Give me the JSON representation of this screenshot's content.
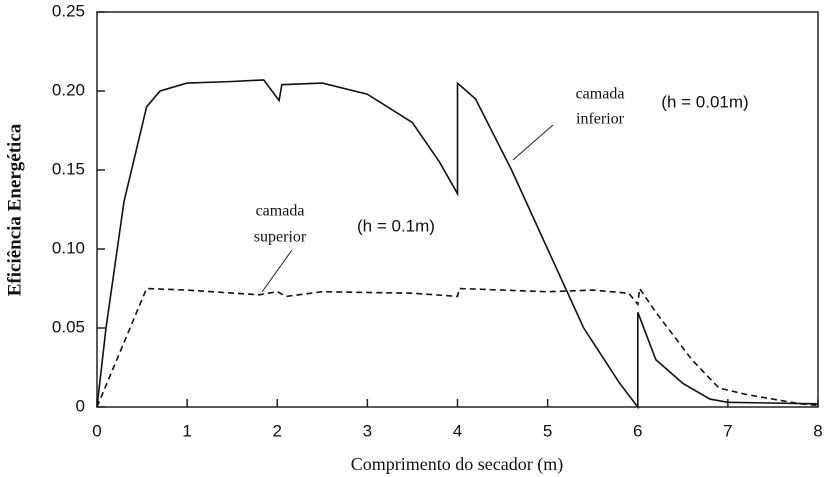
{
  "chart_data": {
    "type": "line",
    "x_label": "Comprimento do secador (m)",
    "y_label": "Eficiência Energética",
    "annotations": [
      {
        "lines": [
          "camada",
          "inferior"
        ],
        "text": "(h = 0.01m)"
      },
      {
        "lines": [
          "camada",
          "superior"
        ],
        "text": "(h = 0.1m)"
      }
    ],
    "xlim": [
      0,
      8
    ],
    "xticks": [
      0,
      1,
      2,
      3,
      4,
      5,
      6,
      7,
      8
    ],
    "ylim": [
      0,
      0.25
    ],
    "yticks": [
      0,
      0.05,
      {
        "value": 0.1,
        "label": "0.10"
      },
      0.15,
      {
        "value": 0.2,
        "label": "0.20"
      },
      0.25
    ],
    "series": [
      {
        "color": "#111111",
        "dash": false,
        "x": [
          0,
          0.1,
          0.3,
          0.55,
          0.7,
          1.0,
          1.5,
          1.85,
          2.02,
          2.05,
          2.5,
          3.0,
          3.5,
          3.8,
          4.0,
          4.0,
          4.2,
          4.6,
          5.0,
          5.4,
          5.8,
          6.0,
          6.0,
          6.2,
          6.5,
          6.8,
          7.0,
          8.0
        ],
        "values": [
          0,
          0.05,
          0.13,
          0.19,
          0.2,
          0.205,
          0.206,
          0.207,
          0.194,
          0.204,
          0.205,
          0.198,
          0.18,
          0.155,
          0.135,
          0.205,
          0.195,
          0.15,
          0.1,
          0.05,
          0.015,
          0,
          0.06,
          0.03,
          0.015,
          0.005,
          0.003,
          0.002
        ]
      },
      {
        "color": "#111111",
        "dash": true,
        "x": [
          0,
          0.55,
          1.0,
          1.8,
          2.0,
          2.1,
          2.5,
          3.5,
          4.0,
          4.02,
          4.5,
          5.0,
          5.5,
          5.9,
          6.0,
          6.02,
          6.2,
          6.6,
          6.9,
          7.2,
          7.8,
          8.0
        ],
        "values": [
          0,
          0.075,
          0.074,
          0.071,
          0.073,
          0.07,
          0.073,
          0.072,
          0.07,
          0.075,
          0.074,
          0.073,
          0.074,
          0.072,
          0.065,
          0.075,
          0.06,
          0.03,
          0.012,
          0.008,
          0.002,
          0.001
        ]
      }
    ]
  }
}
